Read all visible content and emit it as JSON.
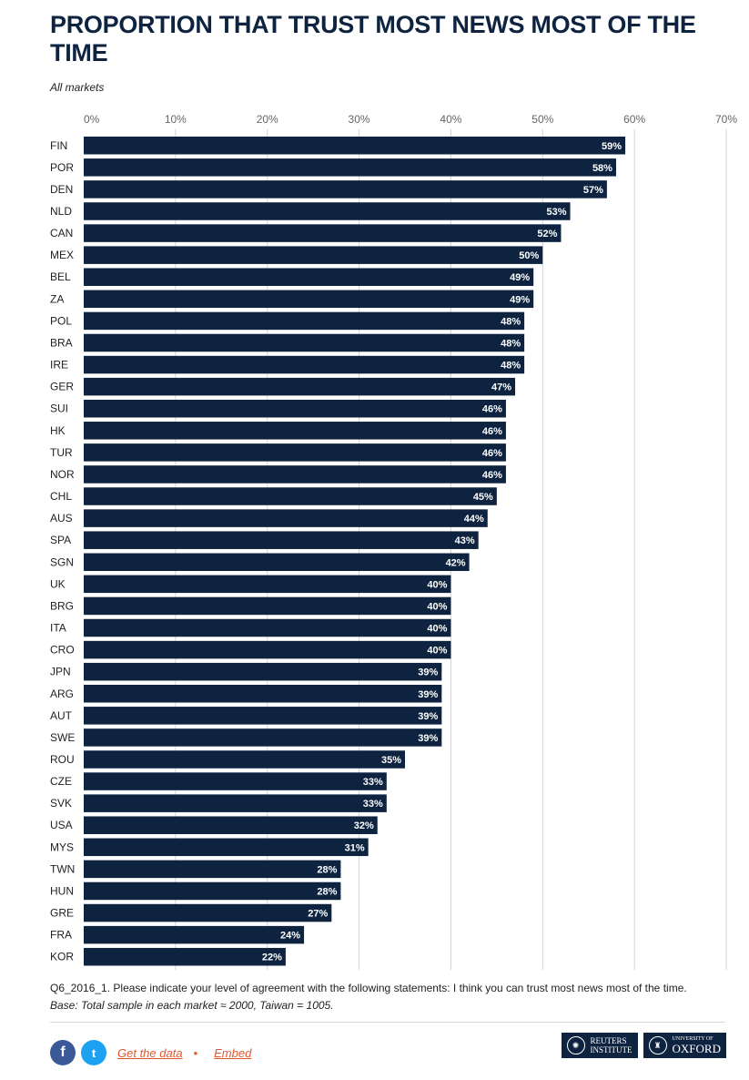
{
  "title": "PROPORTION THAT TRUST MOST NEWS MOST OF THE TIME",
  "subtitle": "All markets",
  "chart_data": {
    "type": "bar",
    "orientation": "horizontal",
    "categories": [
      "FIN",
      "POR",
      "DEN",
      "NLD",
      "CAN",
      "MEX",
      "BEL",
      "ZA",
      "POL",
      "BRA",
      "IRE",
      "GER",
      "SUI",
      "HK",
      "TUR",
      "NOR",
      "CHL",
      "AUS",
      "SPA",
      "SGN",
      "UK",
      "BRG",
      "ITA",
      "CRO",
      "JPN",
      "ARG",
      "AUT",
      "SWE",
      "ROU",
      "CZE",
      "SVK",
      "USA",
      "MYS",
      "TWN",
      "HUN",
      "GRE",
      "FRA",
      "KOR"
    ],
    "values": [
      59,
      58,
      57,
      53,
      52,
      50,
      49,
      49,
      48,
      48,
      48,
      47,
      46,
      46,
      46,
      46,
      45,
      44,
      43,
      42,
      40,
      40,
      40,
      40,
      39,
      39,
      39,
      39,
      35,
      33,
      33,
      32,
      31,
      28,
      28,
      27,
      24,
      22
    ],
    "value_suffix": "%",
    "xlim": [
      0,
      70
    ],
    "xticks": [
      0,
      10,
      20,
      30,
      40,
      50,
      60,
      70
    ],
    "xtick_labels": [
      "0%",
      "10%",
      "20%",
      "30%",
      "40%",
      "50%",
      "60%",
      "70%"
    ],
    "xaxis_position": "top",
    "grid": true,
    "bar_color": "#0d2340",
    "label_color": "#ffffff"
  },
  "notes": {
    "question": "Q6_2016_1. Please indicate your level of agreement with the following statements: I think you can trust most news most of the time.",
    "base": "Base: Total sample in each market ≈ 2000, Taiwan = 1005."
  },
  "footer": {
    "facebook_glyph": "f",
    "twitter_glyph": "t",
    "get_data": "Get the data",
    "bullet": "•",
    "embed": "Embed"
  },
  "logos": {
    "reuters_line1": "REUTERS",
    "reuters_line2": "INSTITUTE",
    "oxford_line1": "UNIVERSITY OF",
    "oxford_line2": "OXFORD"
  }
}
